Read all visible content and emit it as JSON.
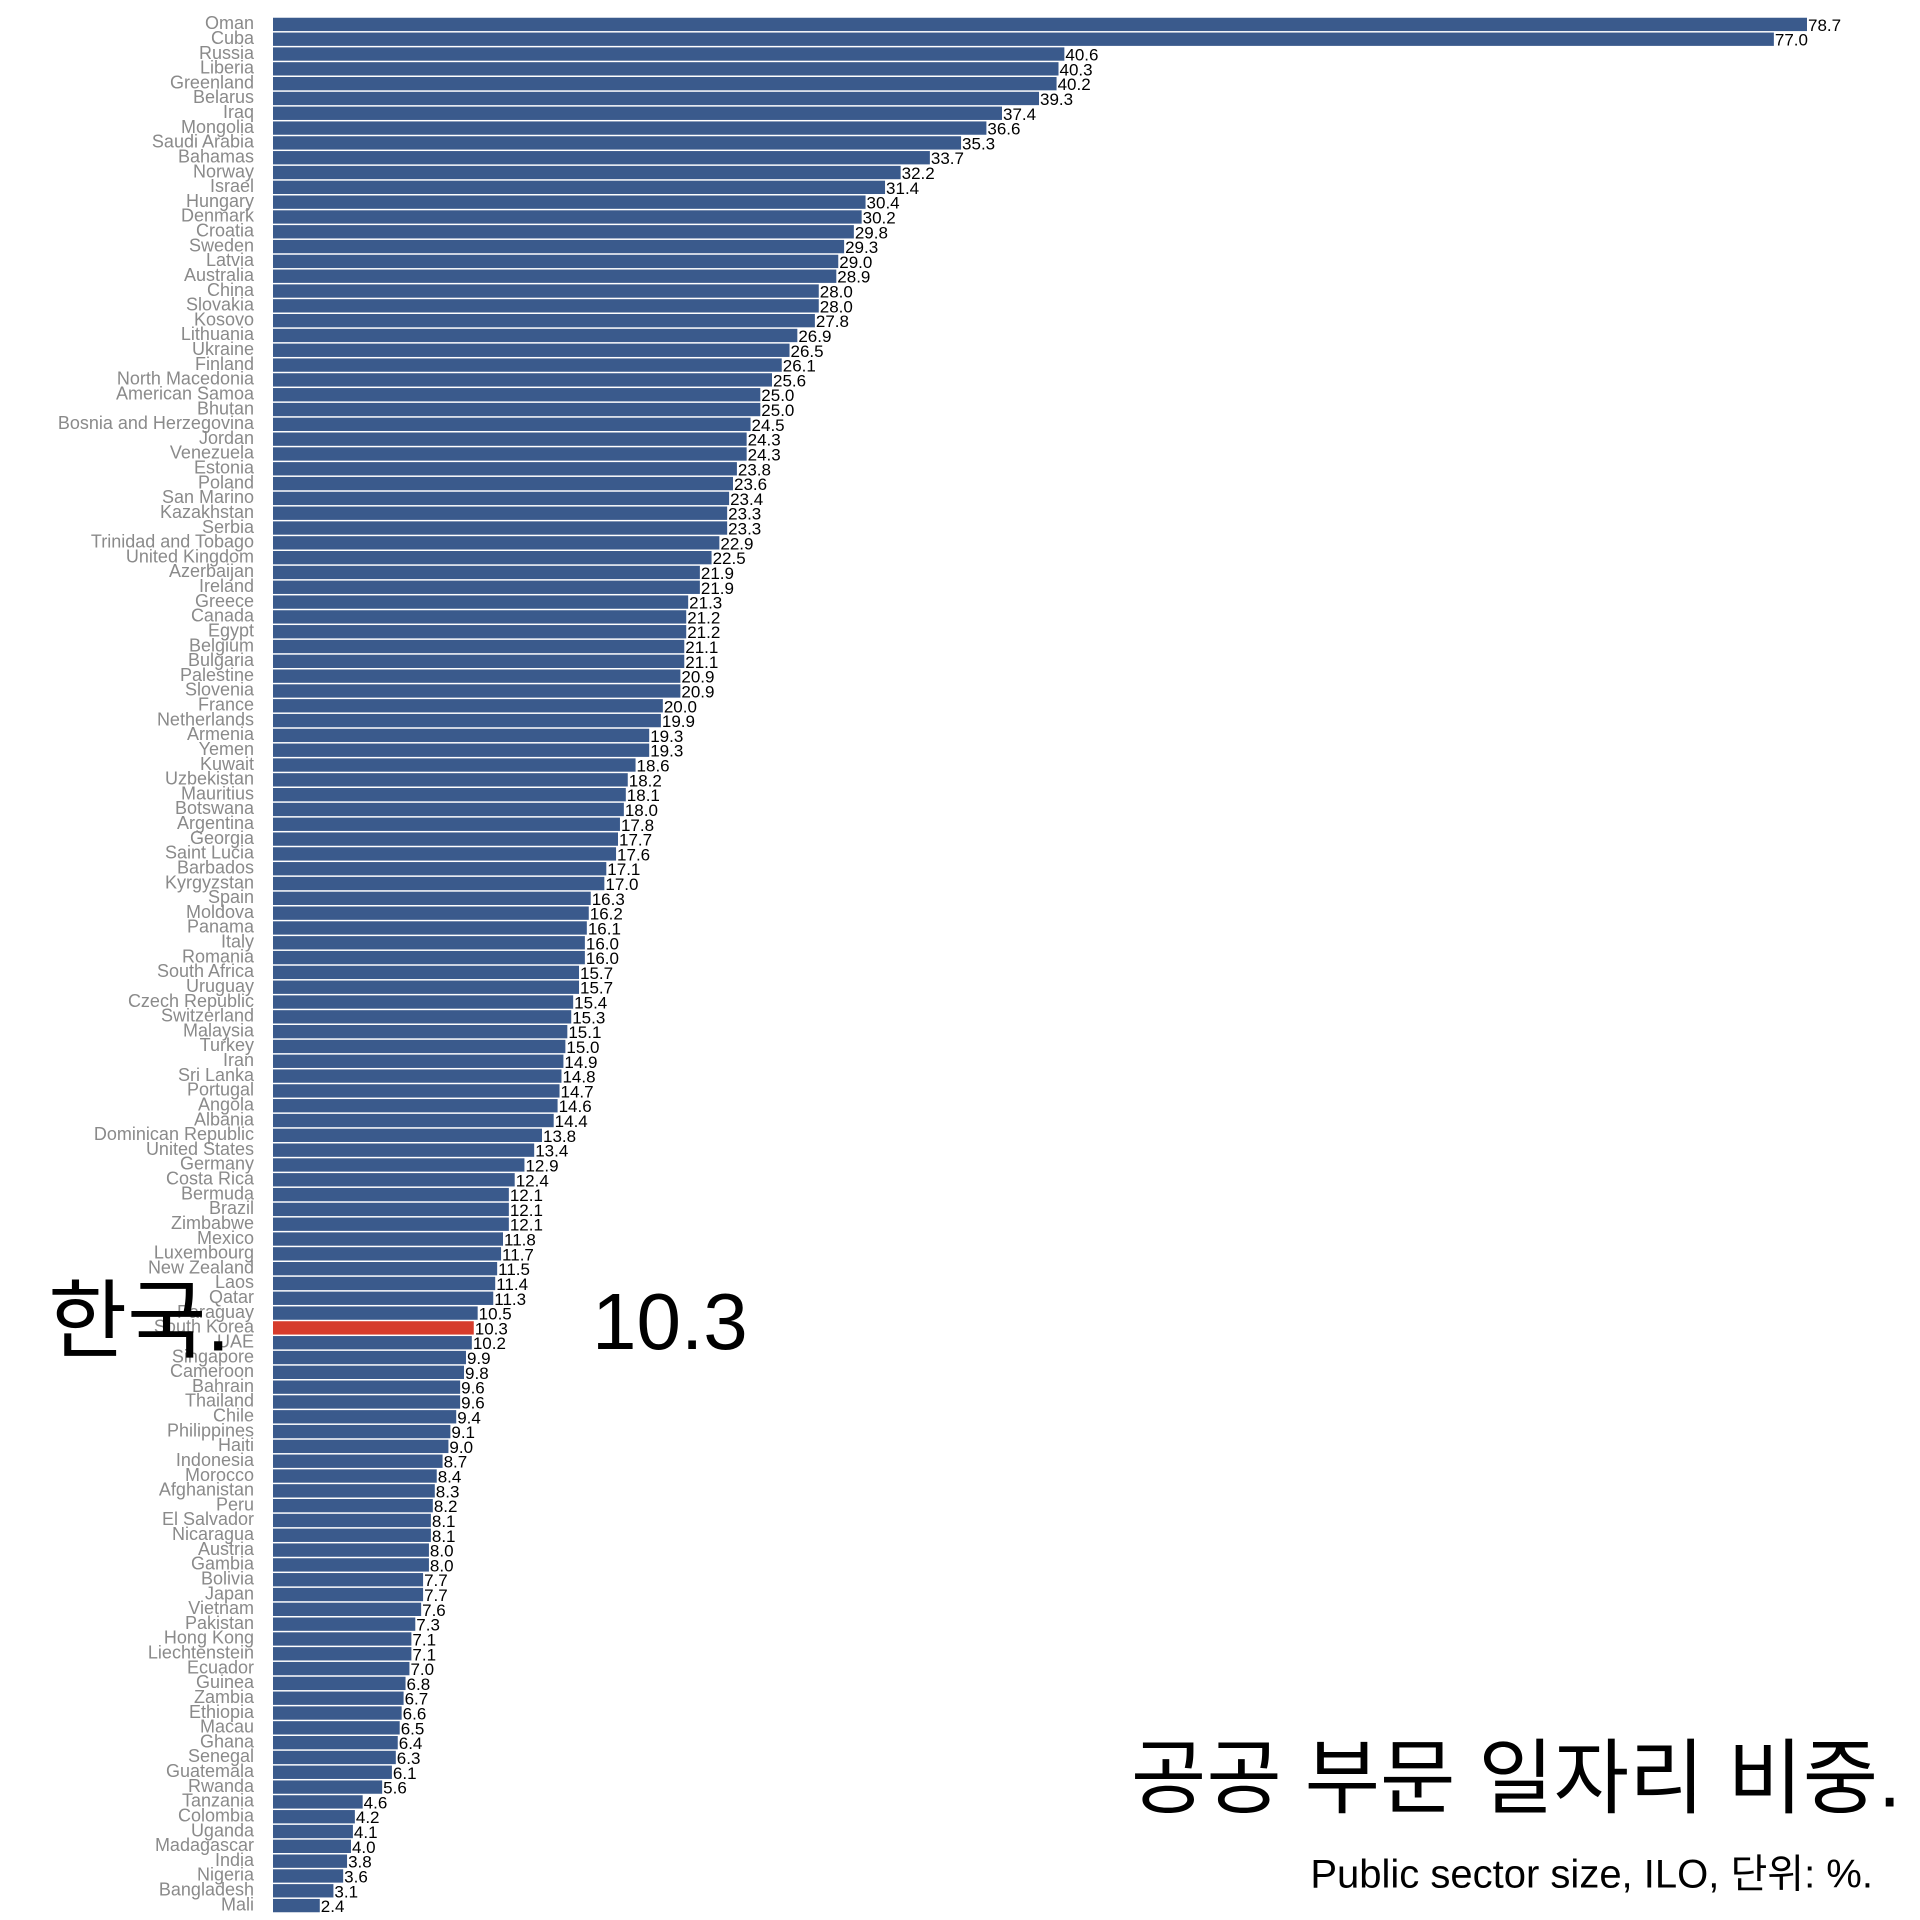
{
  "chart_data": {
    "type": "barh",
    "title": "공공 부문 일자리 비중.",
    "subtitle": "Public sector size, ILO, 단위: %.",
    "annotation": "한국.",
    "highlight": "South Korea",
    "color": "#3a5a8c",
    "highlight_color": "#d63c2c",
    "categories": [
      "Oman",
      "Cuba",
      "Russia",
      "Liberia",
      "Greenland",
      "Belarus",
      "Iraq",
      "Mongolia",
      "Saudi Arabia",
      "Bahamas",
      "Norway",
      "Israel",
      "Hungary",
      "Denmark",
      "Croatia",
      "Sweden",
      "Latvia",
      "Australia",
      "China",
      "Slovakia",
      "Kosovo",
      "Lithuania",
      "Ukraine",
      "Finland",
      "North Macedonia",
      "American Samoa",
      "Bhutan",
      "Bosnia and Herzegovina",
      "Jordan",
      "Venezuela",
      "Estonia",
      "Poland",
      "San Marino",
      "Kazakhstan",
      "Serbia",
      "Trinidad and Tobago",
      "United Kingdom",
      "Azerbaijan",
      "Ireland",
      "Greece",
      "Canada",
      "Egypt",
      "Belgium",
      "Bulgaria",
      "Palestine",
      "Slovenia",
      "France",
      "Netherlands",
      "Armenia",
      "Yemen",
      "Kuwait",
      "Uzbekistan",
      "Mauritius",
      "Botswana",
      "Argentina",
      "Georgia",
      "Saint Lucia",
      "Barbados",
      "Kyrgyzstan",
      "Spain",
      "Moldova",
      "Panama",
      "Italy",
      "Romania",
      "South Africa",
      "Uruguay",
      "Czech Republic",
      "Switzerland",
      "Malaysia",
      "Turkey",
      "Iran",
      "Sri Lanka",
      "Portugal",
      "Angola",
      "Albania",
      "Dominican Republic",
      "United States",
      "Germany",
      "Costa Rica",
      "Bermuda",
      "Brazil",
      "Zimbabwe",
      "Mexico",
      "Luxembourg",
      "New Zealand",
      "Laos",
      "Qatar",
      "Paraguay",
      "South Korea",
      "UAE",
      "Singapore",
      "Cameroon",
      "Bahrain",
      "Thailand",
      "Chile",
      "Philippines",
      "Haiti",
      "Indonesia",
      "Morocco",
      "Afghanistan",
      "Peru",
      "El Salvador",
      "Nicaragua",
      "Austria",
      "Gambia",
      "Bolivia",
      "Japan",
      "Vietnam",
      "Pakistan",
      "Hong Kong",
      "Liechtenstein",
      "Ecuador",
      "Guinea",
      "Zambia",
      "Ethiopia",
      "Macau",
      "Ghana",
      "Senegal",
      "Guatemala",
      "Rwanda",
      "Tanzania",
      "Colombia",
      "Uganda",
      "Madagascar",
      "India",
      "Nigeria",
      "Bangladesh",
      "Mali"
    ],
    "values": [
      78.7,
      77.0,
      40.6,
      40.3,
      40.2,
      39.3,
      37.4,
      36.6,
      35.3,
      33.7,
      32.2,
      31.4,
      30.4,
      30.2,
      29.8,
      29.3,
      29.0,
      28.9,
      28.0,
      28.0,
      27.8,
      26.9,
      26.5,
      26.1,
      25.6,
      25.0,
      25.0,
      24.5,
      24.3,
      24.3,
      23.8,
      23.6,
      23.4,
      23.3,
      23.3,
      22.9,
      22.5,
      21.9,
      21.9,
      21.3,
      21.2,
      21.2,
      21.1,
      21.1,
      20.9,
      20.9,
      20.0,
      19.9,
      19.3,
      19.3,
      18.6,
      18.2,
      18.1,
      18.0,
      17.8,
      17.7,
      17.6,
      17.1,
      17.0,
      16.3,
      16.2,
      16.1,
      16.0,
      16.0,
      15.7,
      15.7,
      15.4,
      15.3,
      15.1,
      15.0,
      14.9,
      14.8,
      14.7,
      14.6,
      14.4,
      13.8,
      13.4,
      12.9,
      12.4,
      12.1,
      12.1,
      12.1,
      11.8,
      11.7,
      11.5,
      11.4,
      11.3,
      10.5,
      10.3,
      10.2,
      9.9,
      9.8,
      9.6,
      9.6,
      9.4,
      9.1,
      9.0,
      8.7,
      8.4,
      8.3,
      8.2,
      8.1,
      8.1,
      8.0,
      8.0,
      7.7,
      7.7,
      7.6,
      7.3,
      7.1,
      7.1,
      7.0,
      6.8,
      6.7,
      6.6,
      6.5,
      6.4,
      6.3,
      6.1,
      5.6,
      4.6,
      4.2,
      4.1,
      4.0,
      3.8,
      3.6,
      3.1,
      2.4
    ],
    "value_labels": [
      "78.7",
      "77.0",
      "40.6",
      "40.3",
      "40.2",
      "39.3",
      "37.4",
      "36.6",
      "35.3",
      "33.7",
      "32.2",
      "31.4",
      "30.4",
      "30.2",
      "29.8",
      "29.3",
      "29.0",
      "28.9",
      "28.0",
      "28.0",
      "27.8",
      "26.9",
      "26.5",
      "26.1",
      "25.6",
      "25.0",
      "25.0",
      "24.5",
      "24.3",
      "24.3",
      "23.8",
      "23.6",
      "23.4",
      "23.3",
      "23.3",
      "22.9",
      "22.5",
      "21.9",
      "21.9",
      "21.3",
      "21.2",
      "21.2",
      "21.1",
      "21.1",
      "20.9",
      "20.9",
      "20.0",
      "19.9",
      "19.3",
      "19.3",
      "18.6",
      "18.2",
      "18.1",
      "18.0",
      "17.8",
      "17.7",
      "17.6",
      "17.1",
      "17.0",
      "16.3",
      "16.2",
      "16.1",
      "16.0",
      "16.0",
      "15.7",
      "15.7",
      "15.4",
      "15.3",
      "15.1",
      "15.0",
      "14.9",
      "14.8",
      "14.7",
      "14.6",
      "14.4",
      "13.8",
      "13.4",
      "12.9",
      "12.4",
      "12.1",
      "12.1",
      "12.1",
      "11.8",
      "11.7",
      "11.5",
      "11.4",
      "11.3",
      "10.5",
      "10.3",
      "10.2",
      "9.9",
      "9.8",
      "9.6",
      "9.6",
      "9.4",
      "9.1",
      "9.0",
      "8.7",
      "8.4",
      "8.3",
      "8.2",
      "8.1",
      "8.1",
      "8.0",
      "8.0",
      "7.7",
      "7.7",
      "7.6",
      "7.3",
      "7.1",
      "7.1",
      "7.0",
      "6.8",
      "6.7",
      "6.6",
      "6.5",
      "6.4",
      "6.3",
      "6.1",
      "5.6",
      "4.6",
      "4.2",
      "4.1",
      "4.0",
      "3.8",
      "3.6",
      "3.1",
      "2.4"
    ]
  }
}
